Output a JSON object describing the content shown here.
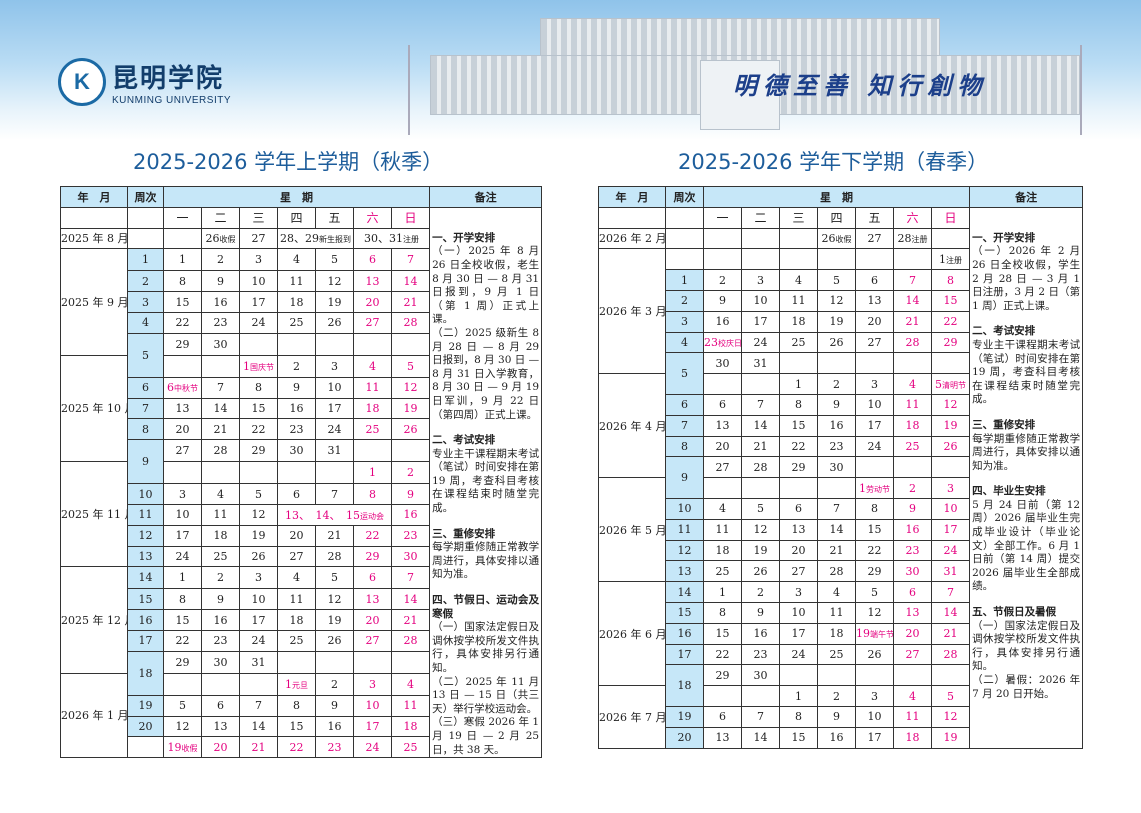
{
  "header": {
    "logo_cn": "昆明学院",
    "logo_en": "KUNMING UNIVERSITY",
    "logo_mark": "K",
    "motto": "明德至善 知行創物"
  },
  "colors": {
    "accent": "#1d5d9b",
    "week_bg": "#c6e7f8",
    "holiday": "#e4007f"
  },
  "table_headers": {
    "month": "年　月",
    "week": "周次",
    "weekdays_title": "星　期",
    "remarks": "备注",
    "weekdays": [
      "一",
      "二",
      "三",
      "四",
      "五",
      "六",
      "日"
    ]
  },
  "autumn": {
    "title": "2025-2026 学年上学期（秋季）",
    "rows": [
      {
        "m": "2025 年 8 月",
        "ms": 1,
        "w": "",
        "ws": 1,
        "c": [
          "",
          {
            "t": "26",
            "n": "收假",
            "red": false
          },
          "27",
          {
            "t": "28、29",
            "n": "新生报到",
            "span": 2,
            "red": false
          },
          {
            "t": "30、31",
            "n": "注册",
            "span": 2,
            "red": false
          }
        ]
      },
      {
        "m": "2025 年 9 月",
        "ms": 5,
        "w": "1",
        "ws": 1,
        "c": [
          "1",
          "2",
          "3",
          "4",
          "5",
          "6",
          "7"
        ]
      },
      {
        "w": "2",
        "ws": 1,
        "c": [
          "8",
          "9",
          "10",
          "11",
          "12",
          "13",
          "14"
        ]
      },
      {
        "w": "3",
        "ws": 1,
        "c": [
          "15",
          "16",
          "17",
          "18",
          "19",
          "20",
          "21"
        ]
      },
      {
        "w": "4",
        "ws": 1,
        "c": [
          "22",
          "23",
          "24",
          "25",
          "26",
          "27",
          "28"
        ]
      },
      {
        "w": "5",
        "ws": 2,
        "c": [
          "29",
          "30",
          "",
          "",
          "",
          "",
          ""
        ]
      },
      {
        "m": "2025 年 10 月",
        "ms": 5,
        "c": [
          "",
          "",
          {
            "t": "1",
            "n": "国庆节",
            "red": true
          },
          "2",
          "3",
          "4",
          "5"
        ]
      },
      {
        "w": "6",
        "ws": 1,
        "c": [
          {
            "t": "6",
            "n": "中秋节",
            "red": true
          },
          "7",
          "8",
          "9",
          "10",
          "11",
          "12"
        ]
      },
      {
        "w": "7",
        "ws": 1,
        "c": [
          "13",
          "14",
          "15",
          "16",
          "17",
          "18",
          "19"
        ]
      },
      {
        "w": "8",
        "ws": 1,
        "c": [
          "20",
          "21",
          "22",
          "23",
          "24",
          "25",
          "26"
        ]
      },
      {
        "w": "9",
        "ws": 2,
        "c": [
          "27",
          "28",
          "29",
          "30",
          "31",
          "",
          ""
        ]
      },
      {
        "m": "2025 年 11 月",
        "ms": 5,
        "c": [
          "",
          "",
          "",
          "",
          "",
          "1",
          "2"
        ]
      },
      {
        "w": "10",
        "ws": 1,
        "c": [
          "3",
          "4",
          "5",
          "6",
          "7",
          "8",
          "9"
        ]
      },
      {
        "w": "11",
        "ws": 1,
        "c": [
          "10",
          "11",
          "12",
          {
            "t": "13、　14、　15",
            "n": "运动会",
            "span": 3,
            "red": true
          },
          "16"
        ]
      },
      {
        "w": "12",
        "ws": 1,
        "c": [
          "17",
          "18",
          "19",
          "20",
          "21",
          "22",
          "23"
        ]
      },
      {
        "w": "13",
        "ws": 1,
        "c": [
          "24",
          "25",
          "26",
          "27",
          "28",
          "29",
          "30"
        ]
      },
      {
        "m": "2025 年 12 月",
        "ms": 5,
        "w": "14",
        "ws": 1,
        "c": [
          "1",
          "2",
          "3",
          "4",
          "5",
          "6",
          "7"
        ]
      },
      {
        "w": "15",
        "ws": 1,
        "c": [
          "8",
          "9",
          "10",
          "11",
          "12",
          "13",
          "14"
        ]
      },
      {
        "w": "16",
        "ws": 1,
        "c": [
          "15",
          "16",
          "17",
          "18",
          "19",
          "20",
          "21"
        ]
      },
      {
        "w": "17",
        "ws": 1,
        "c": [
          "22",
          "23",
          "24",
          "25",
          "26",
          "27",
          "28"
        ]
      },
      {
        "w": "18",
        "ws": 2,
        "c": [
          "29",
          "30",
          "31",
          "",
          "",
          "",
          ""
        ]
      },
      {
        "m": "2026 年 1 月",
        "ms": 4,
        "c": [
          "",
          "",
          "",
          {
            "t": "1",
            "n": "元旦",
            "red": true
          },
          "2",
          "3",
          "4"
        ]
      },
      {
        "w": "19",
        "ws": 1,
        "c": [
          "5",
          "6",
          "7",
          "8",
          "9",
          "10",
          "11"
        ]
      },
      {
        "w": "20",
        "ws": 1,
        "c": [
          "12",
          "13",
          "14",
          "15",
          "16",
          "17",
          "18"
        ]
      },
      {
        "w": "",
        "ws": 1,
        "blank": true,
        "c": [
          {
            "t": "19",
            "n": "收假",
            "red": true
          },
          {
            "t": "20",
            "red": true
          },
          {
            "t": "21",
            "red": true
          },
          {
            "t": "22",
            "red": true
          },
          {
            "t": "23",
            "red": true
          },
          "24",
          "25"
        ]
      }
    ],
    "remarks": [
      {
        "h": "一、开学安排",
        "p": [
          "（一）2025 年 8 月 26 日全校收假，老生 8 月 30 日 — 8 月 31 日报到，9 月 1 日（第 1 周）正式上课。",
          "（二）2025 级新生 8 月 28 日 — 8 月 29 日报到，8 月 30 日 — 8 月 31 日入学教育，8 月 30 日 — 9 月 19 日军训，9 月 22 日（第四周）正式上课。"
        ]
      },
      {
        "h": "二、考试安排",
        "p": [
          "专业主干课程期末考试（笔试）时间安排在第 19 周，考查科目考核在课程结束时随堂完成。"
        ]
      },
      {
        "h": "三、重修安排",
        "p": [
          "每学期重修随正常教学周进行，具体安排以通知为准。"
        ]
      },
      {
        "h": "四、节假日、运动会及寒假",
        "p": [
          "（一）国家法定假日及调休按学校所发文件执行，具体安排另行通知。",
          "（二）2025 年 11 月 13 日 — 15 日（共三天）举行学校运动会。",
          "（三）寒假 2026 年 1 月 19 日 — 2 月 25 日，共 38 天。"
        ]
      }
    ]
  },
  "spring": {
    "title": "2025-2026 学年下学期（春季）",
    "rows": [
      {
        "m": "2026 年 2 月",
        "ms": 1,
        "w": "",
        "ws": 1,
        "c": [
          "",
          "",
          "",
          {
            "t": "26",
            "n": "收假",
            "red": false
          },
          "27",
          {
            "t": "28",
            "n": "注册",
            "red": false
          },
          ""
        ]
      },
      {
        "m": "2026 年 3 月",
        "ms": 6,
        "w": "",
        "ws": 1,
        "blank": true,
        "c": [
          "",
          "",
          "",
          "",
          "",
          "",
          {
            "t": "1",
            "n": "注册",
            "red": false
          }
        ]
      },
      {
        "w": "1",
        "ws": 1,
        "c": [
          "2",
          "3",
          "4",
          "5",
          "6",
          "7",
          "8"
        ]
      },
      {
        "w": "2",
        "ws": 1,
        "c": [
          "9",
          "10",
          "11",
          "12",
          "13",
          "14",
          "15"
        ]
      },
      {
        "w": "3",
        "ws": 1,
        "c": [
          "16",
          "17",
          "18",
          "19",
          "20",
          "21",
          "22"
        ]
      },
      {
        "w": "4",
        "ws": 1,
        "c": [
          {
            "t": "23",
            "n": "校庆日",
            "red": true
          },
          "24",
          "25",
          "26",
          "27",
          "28",
          "29"
        ]
      },
      {
        "w": "5",
        "ws": 2,
        "c": [
          "30",
          "31",
          "",
          "",
          "",
          "",
          ""
        ]
      },
      {
        "m": "2026 年 4 月",
        "ms": 5,
        "c": [
          "",
          "",
          "1",
          "2",
          "3",
          "4",
          {
            "t": "5",
            "n": "清明节",
            "red": true
          }
        ]
      },
      {
        "w": "6",
        "ws": 1,
        "c": [
          "6",
          "7",
          "8",
          "9",
          "10",
          "11",
          "12"
        ]
      },
      {
        "w": "7",
        "ws": 1,
        "c": [
          "13",
          "14",
          "15",
          "16",
          "17",
          "18",
          "19"
        ]
      },
      {
        "w": "8",
        "ws": 1,
        "c": [
          "20",
          "21",
          "22",
          "23",
          "24",
          "25",
          "26"
        ]
      },
      {
        "w": "9",
        "ws": 2,
        "c": [
          "27",
          "28",
          "29",
          "30",
          "",
          "",
          ""
        ]
      },
      {
        "m": "2026 年 5 月",
        "ms": 5,
        "c": [
          "",
          "",
          "",
          "",
          {
            "t": "1",
            "n": "劳动节",
            "red": true
          },
          "2",
          "3"
        ]
      },
      {
        "w": "10",
        "ws": 1,
        "c": [
          "4",
          "5",
          "6",
          "7",
          "8",
          "9",
          "10"
        ]
      },
      {
        "w": "11",
        "ws": 1,
        "c": [
          "11",
          "12",
          "13",
          "14",
          "15",
          "16",
          "17"
        ]
      },
      {
        "w": "12",
        "ws": 1,
        "c": [
          "18",
          "19",
          "20",
          "21",
          "22",
          "23",
          "24"
        ]
      },
      {
        "w": "13",
        "ws": 1,
        "c": [
          "25",
          "26",
          "27",
          "28",
          "29",
          "30",
          "31"
        ]
      },
      {
        "m": "2026 年 6 月",
        "ms": 5,
        "w": "14",
        "ws": 1,
        "c": [
          "1",
          "2",
          "3",
          "4",
          "5",
          "6",
          "7"
        ]
      },
      {
        "w": "15",
        "ws": 1,
        "c": [
          "8",
          "9",
          "10",
          "11",
          "12",
          "13",
          "14"
        ]
      },
      {
        "w": "16",
        "ws": 1,
        "c": [
          "15",
          "16",
          "17",
          "18",
          {
            "t": "19",
            "n": "端午节",
            "red": true
          },
          "20",
          "21"
        ]
      },
      {
        "w": "17",
        "ws": 1,
        "c": [
          "22",
          "23",
          "24",
          "25",
          "26",
          "27",
          "28"
        ]
      },
      {
        "w": "18",
        "ws": 2,
        "c": [
          "29",
          "30",
          "",
          "",
          "",
          "",
          ""
        ]
      },
      {
        "m": "2026 年 7 月",
        "ms": 3,
        "c": [
          "",
          "",
          "1",
          "2",
          "3",
          "4",
          "5"
        ]
      },
      {
        "w": "19",
        "ws": 1,
        "c": [
          "6",
          "7",
          "8",
          "9",
          "10",
          "11",
          "12"
        ]
      },
      {
        "w": "20",
        "ws": 1,
        "c": [
          "13",
          "14",
          "15",
          "16",
          "17",
          "18",
          "19"
        ]
      }
    ],
    "remarks": [
      {
        "h": "一、开学安排",
        "p": [
          "（一）2026 年 2 月 26 日全校收假，学生 2 月 28 日 — 3 月 1 日注册，3 月 2 日（第 1 周）正式上课。"
        ]
      },
      {
        "h": "二、考试安排",
        "p": [
          "专业主干课程期末考试（笔试）时间安排在第 19 周，考查科目考核在课程结束时随堂完成。"
        ]
      },
      {
        "h": "三、重修安排",
        "p": [
          "每学期重修随正常教学周进行，具体安排以通知为准。"
        ]
      },
      {
        "h": "四、毕业生安排",
        "p": [
          "5 月 24 日前（第 12 周）2026 届毕业生完成毕业设计（毕业论文）全部工作。6 月 1 日前（第 14 周）提交 2026 届毕业生全部成绩。"
        ]
      },
      {
        "h": "五、节假日及暑假",
        "p": [
          "（一）国家法定假日及调休按学校所发文件执行，具体安排另行通知。",
          "（二）暑假：2026 年 7 月 20 日开始。"
        ]
      }
    ]
  }
}
